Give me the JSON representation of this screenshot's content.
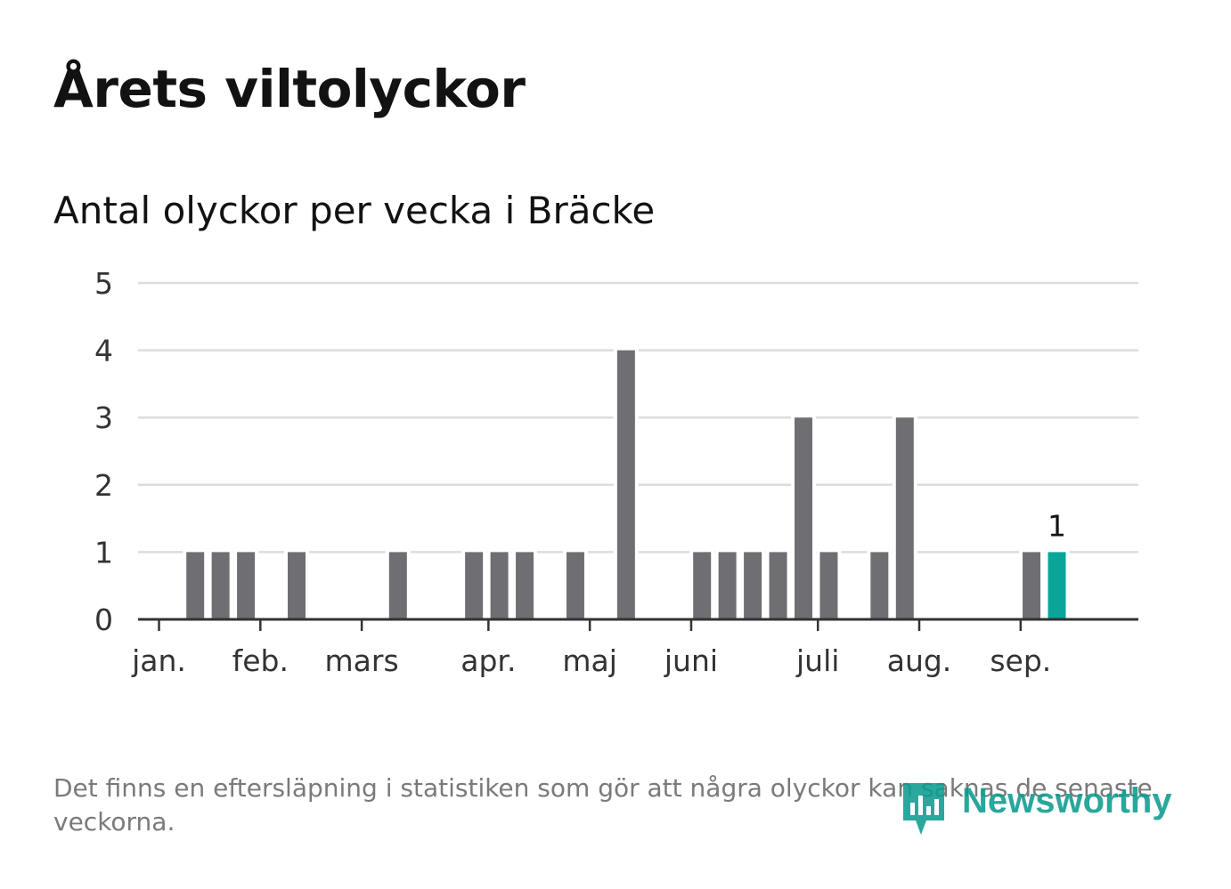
{
  "header": {
    "title": "Årets viltolyckor",
    "subtitle": "Antal olyckor per vecka i Bräcke"
  },
  "footer": {
    "note": "Det finns en eftersläpning i statistiken som gör att några olyckor kan saknas de senaste veckorna.",
    "brand": "Newsworthy",
    "brand_icon": "newsworthy-logo-icon"
  },
  "colors": {
    "bar": "#6f6e73",
    "highlight": "#0aa599",
    "grid": "#dddddd",
    "axis": "#333333",
    "text": "#333333",
    "brand": "#0d9c8f"
  },
  "chart_data": {
    "type": "bar",
    "title": "Antal olyckor per vecka i Bräcke",
    "xlabel": "",
    "ylabel": "",
    "ylim": [
      0,
      5
    ],
    "yticks": [
      0,
      1,
      2,
      3,
      4,
      5
    ],
    "grid": true,
    "x_unit": "week",
    "weeks": [
      1,
      2,
      3,
      4,
      5,
      6,
      7,
      8,
      9,
      10,
      11,
      12,
      13,
      14,
      15,
      16,
      17,
      18,
      19,
      20,
      21,
      22,
      23,
      24,
      25,
      26,
      27,
      28,
      29,
      30,
      31,
      32,
      33,
      34,
      35,
      36,
      37
    ],
    "values": [
      0,
      0,
      1,
      1,
      1,
      0,
      1,
      0,
      0,
      0,
      1,
      0,
      0,
      1,
      1,
      1,
      0,
      1,
      0,
      4,
      0,
      0,
      1,
      1,
      1,
      1,
      3,
      1,
      0,
      1,
      3,
      0,
      0,
      0,
      0,
      1,
      1
    ],
    "highlight_last": true,
    "highlight_label": "1",
    "month_ticks": [
      {
        "label": "jan.",
        "week": 1.57
      },
      {
        "label": "feb.",
        "week": 5.57
      },
      {
        "label": "mars",
        "week": 9.57
      },
      {
        "label": "apr.",
        "week": 14.57
      },
      {
        "label": "maj",
        "week": 18.57
      },
      {
        "label": "juni",
        "week": 22.57
      },
      {
        "label": "juli",
        "week": 27.57
      },
      {
        "label": "aug.",
        "week": 31.57
      },
      {
        "label": "sep.",
        "week": 35.57
      }
    ]
  }
}
